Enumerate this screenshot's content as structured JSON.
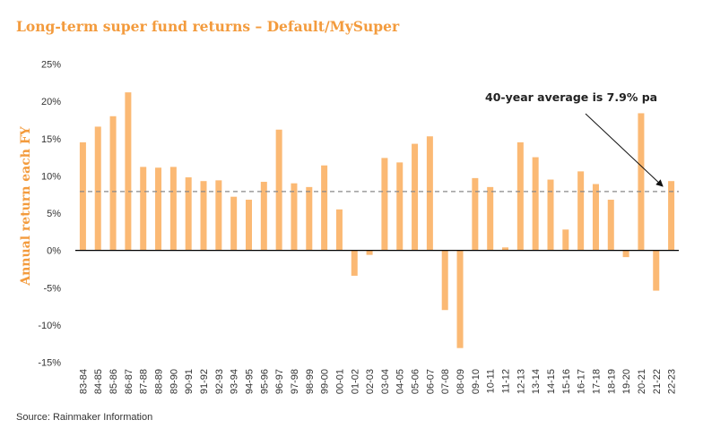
{
  "chart_data": {
    "type": "bar",
    "title": "Long-term super fund returns – Default/MySuper",
    "ylabel": "Annual return each FY",
    "xlabel": "",
    "ylim": [
      -15,
      25
    ],
    "yticks": [
      25,
      20,
      15,
      10,
      5,
      0,
      -5,
      -10,
      -15
    ],
    "ytick_labels": [
      "25%",
      "20%",
      "15%",
      "10%",
      "5%",
      "0%",
      "-5%",
      "-10%",
      "-15%"
    ],
    "categories": [
      "83-84",
      "84-85",
      "85-86",
      "86-87",
      "87-88",
      "88-89",
      "89-90",
      "90-91",
      "91-92",
      "92-93",
      "93-94",
      "94-95",
      "95-96",
      "96-97",
      "97-98",
      "98-99",
      "99-00",
      "00-01",
      "01-02",
      "02-03",
      "03-04",
      "04-05",
      "05-06",
      "06-07",
      "07-08",
      "08-09",
      "09-10",
      "10-11",
      "11-12",
      "12-13",
      "13-14",
      "14-15",
      "15-16",
      "16-17",
      "17-18",
      "18-19",
      "19-20",
      "20-21",
      "21-22",
      "22-23"
    ],
    "values": [
      14.5,
      16.6,
      18.0,
      21.2,
      11.2,
      11.1,
      11.2,
      9.8,
      9.3,
      9.4,
      7.2,
      6.8,
      9.2,
      16.2,
      9.0,
      8.5,
      11.4,
      5.5,
      -3.4,
      -0.6,
      12.4,
      11.8,
      14.3,
      15.3,
      -8.0,
      -13.1,
      9.7,
      8.5,
      0.4,
      14.5,
      12.5,
      9.5,
      2.8,
      10.6,
      8.9,
      6.8,
      -0.9,
      18.4,
      -5.4,
      9.3
    ],
    "average_line": 7.9,
    "annotation": "40-year average is 7.9% pa",
    "bar_color": "#fbb974",
    "grid": false,
    "source": "Source: Rainmaker Information"
  }
}
